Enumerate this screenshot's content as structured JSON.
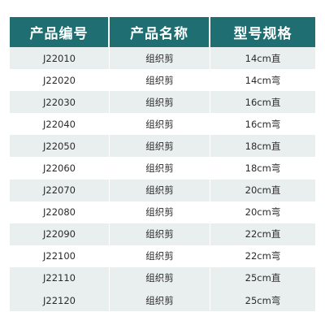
{
  "table": {
    "headers": [
      "产品编号",
      "产品名称",
      "型号规格"
    ],
    "rows": [
      [
        "J22010",
        "组织剪",
        "14cm直"
      ],
      [
        "J22020",
        "组织剪",
        "14cm弯"
      ],
      [
        "J22030",
        "组织剪",
        "16cm直"
      ],
      [
        "J22040",
        "组织剪",
        "16cm弯"
      ],
      [
        "J22050",
        "组织剪",
        "18cm直"
      ],
      [
        "J22060",
        "组织剪",
        "18cm弯"
      ],
      [
        "J22070",
        "组织剪",
        "20cm直"
      ],
      [
        "J22080",
        "组织剪",
        "20cm弯"
      ],
      [
        "J22090",
        "组织剪",
        "22cm直"
      ],
      [
        "J22100",
        "组织剪",
        "22cm弯"
      ],
      [
        "J22110",
        "组织剪",
        "25cm直"
      ],
      [
        "J22120",
        "组织剪",
        "25cm弯"
      ]
    ]
  },
  "colors": {
    "header_bg": "#1f6f72",
    "header_text": "#ffffff",
    "stripe_bg": "#e9eeef"
  }
}
